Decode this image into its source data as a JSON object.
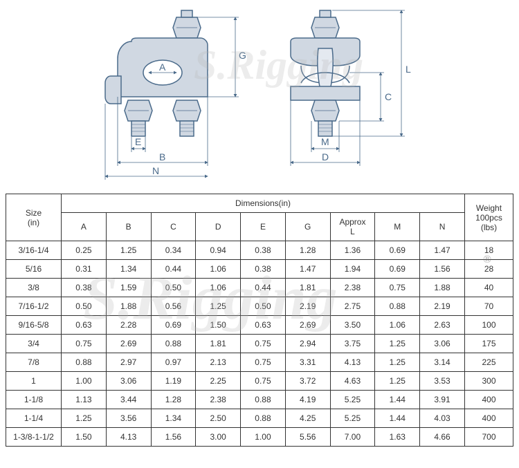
{
  "diagram": {
    "stroke_color": "#4a6a8a",
    "fill_color": "#d0d8e2",
    "label_color": "#4a6a8a",
    "labels": [
      "A",
      "B",
      "C",
      "D",
      "E",
      "G",
      "L",
      "M",
      "N"
    ]
  },
  "table": {
    "header": {
      "size_label": "Size\n(in)",
      "dimensions_label": "Dimensions(in)",
      "weight_label": "Weight\n100pcs\n(lbs)",
      "columns": [
        "A",
        "B",
        "C",
        "D",
        "E",
        "G",
        "Approx\nL",
        "M",
        "N"
      ]
    },
    "rows": [
      {
        "size": "3/16-1/4",
        "A": "0.25",
        "B": "1.25",
        "C": "0.34",
        "D": "0.94",
        "E": "0.38",
        "G": "1.28",
        "L": "1.36",
        "M": "0.69",
        "N": "1.47",
        "W": "18"
      },
      {
        "size": "5/16",
        "A": "0.31",
        "B": "1.34",
        "C": "0.44",
        "D": "1.06",
        "E": "0.38",
        "G": "1.47",
        "L": "1.94",
        "M": "0.69",
        "N": "1.56",
        "W": "28"
      },
      {
        "size": "3/8",
        "A": "0.38",
        "B": "1.59",
        "C": "0.50",
        "D": "1.06",
        "E": "0.44",
        "G": "1.81",
        "L": "2.38",
        "M": "0.75",
        "N": "1.88",
        "W": "40"
      },
      {
        "size": "7/16-1/2",
        "A": "0.50",
        "B": "1.88",
        "C": "0.56",
        "D": "1.25",
        "E": "0.50",
        "G": "2.19",
        "L": "2.75",
        "M": "0.88",
        "N": "2.19",
        "W": "70"
      },
      {
        "size": "9/16-5/8",
        "A": "0.63",
        "B": "2.28",
        "C": "0.69",
        "D": "1.50",
        "E": "0.63",
        "G": "2.69",
        "L": "3.50",
        "M": "1.06",
        "N": "2.63",
        "W": "100"
      },
      {
        "size": "3/4",
        "A": "0.75",
        "B": "2.69",
        "C": "0.88",
        "D": "1.81",
        "E": "0.75",
        "G": "2.94",
        "L": "3.75",
        "M": "1.25",
        "N": "3.06",
        "W": "175"
      },
      {
        "size": "7/8",
        "A": "0.88",
        "B": "2.97",
        "C": "0.97",
        "D": "2.13",
        "E": "0.75",
        "G": "3.31",
        "L": "4.13",
        "M": "1.25",
        "N": "3.14",
        "W": "225"
      },
      {
        "size": "1",
        "A": "1.00",
        "B": "3.06",
        "C": "1.19",
        "D": "2.25",
        "E": "0.75",
        "G": "3.72",
        "L": "4.63",
        "M": "1.25",
        "N": "3.53",
        "W": "300"
      },
      {
        "size": "1-1/8",
        "A": "1.13",
        "B": "3.44",
        "C": "1.28",
        "D": "2.38",
        "E": "0.88",
        "G": "4.19",
        "L": "5.25",
        "M": "1.44",
        "N": "3.91",
        "W": "400"
      },
      {
        "size": "1-1/4",
        "A": "1.25",
        "B": "3.56",
        "C": "1.34",
        "D": "2.50",
        "E": "0.88",
        "G": "4.25",
        "L": "5.25",
        "M": "1.44",
        "N": "4.03",
        "W": "400"
      },
      {
        "size": "1-3/8-1-1/2",
        "A": "1.50",
        "B": "4.13",
        "C": "1.56",
        "D": "3.00",
        "E": "1.00",
        "G": "5.56",
        "L": "7.00",
        "M": "1.63",
        "N": "4.66",
        "W": "700"
      }
    ]
  },
  "watermark_text": "S.Rigging"
}
